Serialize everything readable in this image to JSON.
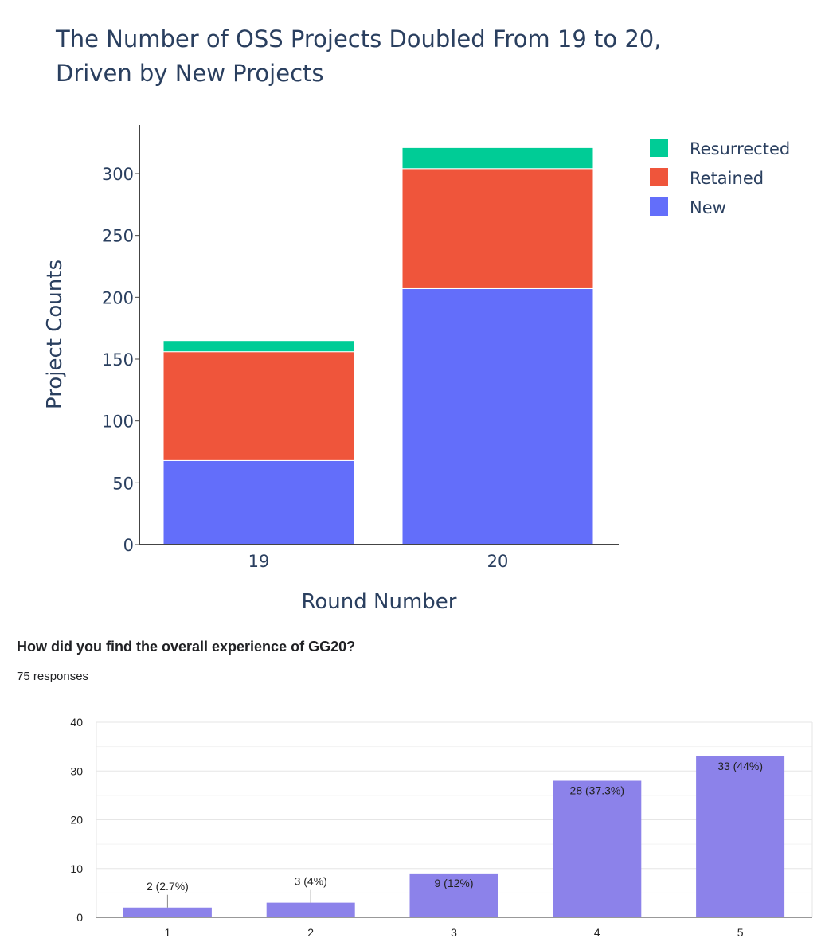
{
  "chart_data": [
    {
      "type": "bar",
      "stacked": true,
      "title_lines": [
        "The Number of OSS Projects Doubled From 19 to 20,",
        "Driven by New Projects"
      ],
      "xlabel": "Round Number",
      "ylabel": "Project Counts",
      "categories": [
        "19",
        "20"
      ],
      "series": [
        {
          "name": "New",
          "color": "#636efa",
          "values": [
            68,
            207
          ]
        },
        {
          "name": "Retained",
          "color": "#ef553b",
          "values": [
            88,
            97
          ]
        },
        {
          "name": "Resurrected",
          "color": "#00cc96",
          "values": [
            9,
            17
          ]
        }
      ],
      "legend_order": [
        "Resurrected",
        "Retained",
        "New"
      ],
      "ylim": [
        0,
        330
      ],
      "yticks": [
        0,
        50,
        100,
        150,
        200,
        250,
        300
      ],
      "yticks_labels": [
        "0",
        "50",
        "100",
        "150",
        "200",
        "250",
        "300"
      ],
      "legend_position": "top-right",
      "grid": false
    },
    {
      "type": "bar",
      "title": "How did you find the overall experience of GG20?",
      "subtitle": "75 responses",
      "categories": [
        "1",
        "2",
        "3",
        "4",
        "5"
      ],
      "values": [
        2,
        3,
        9,
        28,
        33
      ],
      "data_labels": [
        "2 (2.7%)",
        "3 (4%)",
        "9 (12%)",
        "28 (37.3%)",
        "33 (44%)"
      ],
      "color": "#8c82ea",
      "ylim": [
        0,
        40
      ],
      "yticks": [
        0,
        10,
        20,
        30,
        40
      ],
      "yticks_labels": [
        "0",
        "10",
        "20",
        "30",
        "40"
      ],
      "grid": true
    }
  ]
}
